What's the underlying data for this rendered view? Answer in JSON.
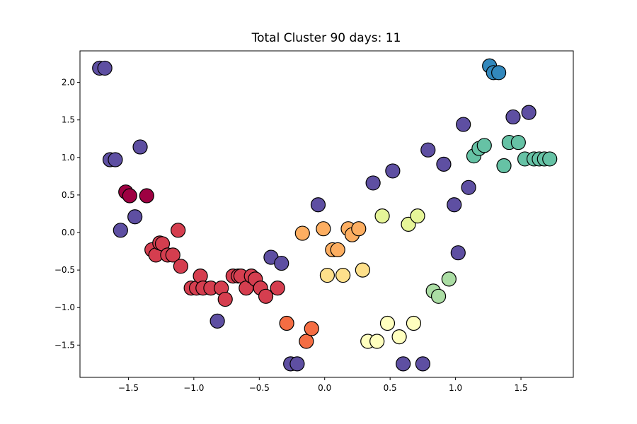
{
  "chart_data": {
    "type": "scatter",
    "title": "Total Cluster 90 days: 11",
    "xlabel": "",
    "ylabel": "",
    "xlim": [
      -1.87,
      1.9
    ],
    "ylim": [
      -1.93,
      2.42
    ],
    "xticks": [
      -1.5,
      -1.0,
      -0.5,
      0.0,
      0.5,
      1.0,
      1.5
    ],
    "xtick_labels": [
      "−1.5",
      "−1.0",
      "−0.5",
      "0.0",
      "0.5",
      "1.0",
      "1.5"
    ],
    "yticks": [
      -1.5,
      -1.0,
      -0.5,
      0.0,
      0.5,
      1.0,
      1.5,
      2.0
    ],
    "ytick_labels": [
      "−1.5",
      "−1.0",
      "−0.5",
      "0.0",
      "0.5",
      "1.0",
      "1.5",
      "2.0"
    ],
    "grid": false,
    "series": [
      {
        "color": "#9e0142",
        "points": [
          [
            -1.52,
            0.54
          ],
          [
            -1.49,
            0.49
          ],
          [
            -1.36,
            0.49
          ]
        ]
      },
      {
        "color": "#d53e4f",
        "points": [
          [
            -1.32,
            -0.23
          ],
          [
            -1.29,
            -0.3
          ],
          [
            -1.26,
            -0.14
          ],
          [
            -1.24,
            -0.15
          ],
          [
            -1.2,
            -0.3
          ],
          [
            -1.16,
            -0.3
          ],
          [
            -1.12,
            0.03
          ],
          [
            -1.1,
            -0.45
          ],
          [
            -1.02,
            -0.74
          ],
          [
            -0.98,
            -0.74
          ],
          [
            -0.95,
            -0.58
          ],
          [
            -0.93,
            -0.74
          ],
          [
            -0.87,
            -0.74
          ],
          [
            -0.79,
            -0.74
          ],
          [
            -0.76,
            -0.89
          ],
          [
            -0.7,
            -0.58
          ],
          [
            -0.66,
            -0.58
          ],
          [
            -0.64,
            -0.58
          ],
          [
            -0.6,
            -0.74
          ],
          [
            -0.56,
            -0.58
          ],
          [
            -0.53,
            -0.62
          ],
          [
            -0.49,
            -0.74
          ],
          [
            -0.45,
            -0.85
          ],
          [
            -0.36,
            -0.74
          ]
        ]
      },
      {
        "color": "#f46d43",
        "points": [
          [
            -0.29,
            -1.21
          ],
          [
            -0.14,
            -1.45
          ],
          [
            -0.1,
            -1.28
          ]
        ]
      },
      {
        "color": "#fdae61",
        "points": [
          [
            -0.17,
            -0.01
          ],
          [
            -0.01,
            0.05
          ],
          [
            0.06,
            -0.23
          ],
          [
            0.1,
            -0.23
          ],
          [
            0.18,
            0.05
          ],
          [
            0.21,
            -0.03
          ],
          [
            0.26,
            0.05
          ]
        ]
      },
      {
        "color": "#fee08b",
        "points": [
          [
            0.02,
            -0.57
          ],
          [
            0.14,
            -0.57
          ],
          [
            0.29,
            -0.5
          ]
        ]
      },
      {
        "color": "#ffffbf",
        "points": [
          [
            0.33,
            -1.45
          ],
          [
            0.4,
            -1.45
          ],
          [
            0.48,
            -1.21
          ],
          [
            0.57,
            -1.39
          ],
          [
            0.68,
            -1.21
          ]
        ]
      },
      {
        "color": "#e6f598",
        "points": [
          [
            0.44,
            0.22
          ],
          [
            0.64,
            0.11
          ],
          [
            0.71,
            0.22
          ]
        ]
      },
      {
        "color": "#abdda4",
        "points": [
          [
            0.83,
            -0.78
          ],
          [
            0.87,
            -0.85
          ],
          [
            0.95,
            -0.62
          ]
        ]
      },
      {
        "color": "#66c2a5",
        "points": [
          [
            1.14,
            1.02
          ],
          [
            1.18,
            1.12
          ],
          [
            1.22,
            1.16
          ],
          [
            1.37,
            0.89
          ],
          [
            1.41,
            1.2
          ],
          [
            1.48,
            1.2
          ],
          [
            1.53,
            0.98
          ],
          [
            1.6,
            0.98
          ],
          [
            1.64,
            0.98
          ],
          [
            1.68,
            0.98
          ],
          [
            1.72,
            0.98
          ]
        ]
      },
      {
        "color": "#3288bd",
        "points": [
          [
            1.26,
            2.22
          ],
          [
            1.29,
            2.13
          ],
          [
            1.33,
            2.13
          ]
        ]
      },
      {
        "color": "#5e4fa2",
        "points": [
          [
            -1.72,
            2.19
          ],
          [
            -1.68,
            2.19
          ],
          [
            -1.64,
            0.97
          ],
          [
            -1.6,
            0.97
          ],
          [
            -1.56,
            0.03
          ],
          [
            -1.45,
            0.21
          ],
          [
            -1.41,
            1.14
          ],
          [
            -0.41,
            -0.33
          ],
          [
            -0.33,
            -0.41
          ],
          [
            -0.82,
            -1.18
          ],
          [
            -0.26,
            -1.75
          ],
          [
            -0.21,
            -1.75
          ],
          [
            -0.05,
            0.37
          ],
          [
            0.37,
            0.66
          ],
          [
            0.52,
            0.82
          ],
          [
            0.6,
            -1.75
          ],
          [
            0.75,
            -1.75
          ],
          [
            0.79,
            1.1
          ],
          [
            0.91,
            0.91
          ],
          [
            0.99,
            0.37
          ],
          [
            1.02,
            -0.27
          ],
          [
            1.06,
            1.44
          ],
          [
            1.1,
            0.6
          ],
          [
            1.44,
            1.54
          ],
          [
            1.56,
            1.6
          ]
        ]
      }
    ]
  }
}
